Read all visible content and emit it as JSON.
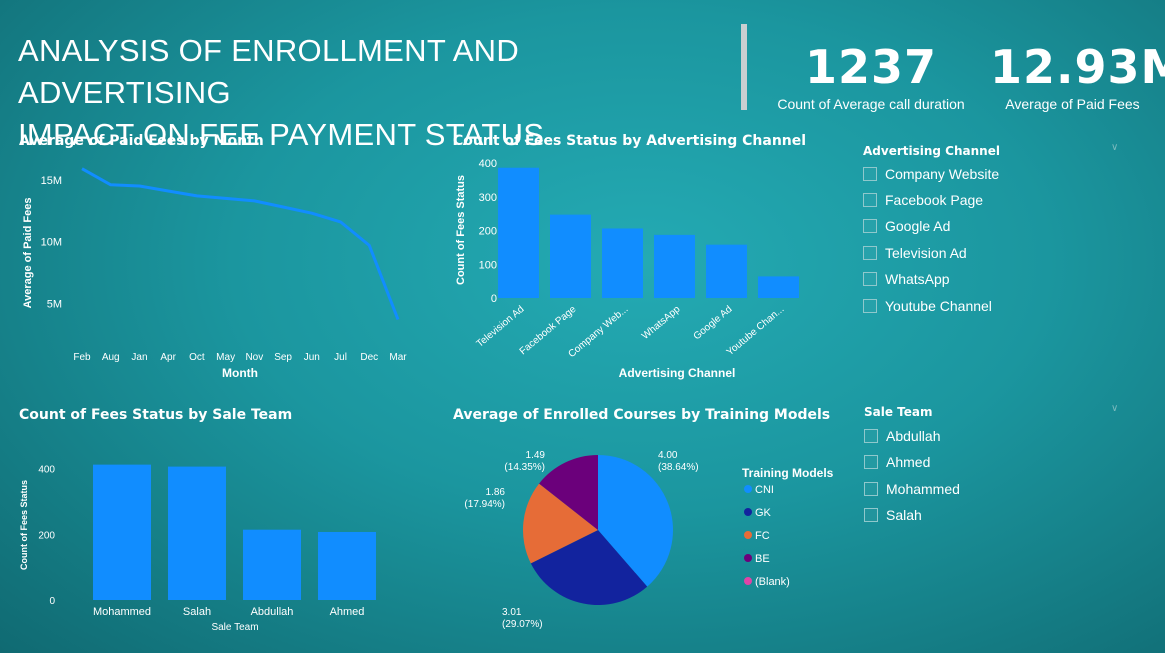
{
  "header": {
    "title_line1": "ANALYSIS OF ENROLLMENT AND ADVERTISING",
    "title_line2": "IMPACT ON FEE PAYMENT STATUS"
  },
  "kpis": [
    {
      "value": "1237",
      "label": "Count of Average call duration"
    },
    {
      "value": "12.93M",
      "label": "Average of Paid Fees"
    }
  ],
  "colors": {
    "bar": "#118dff",
    "pie": [
      "#118dff",
      "#12239e",
      "#e66c37",
      "#6b007b",
      "#e044a7"
    ]
  },
  "chart_data": [
    {
      "type": "line",
      "title": "Average of Paid Fees by Month",
      "xlabel": "Month",
      "ylabel": "Average of Paid Fees",
      "categories": [
        "Feb",
        "Aug",
        "Jan",
        "Apr",
        "Oct",
        "May",
        "Nov",
        "Sep",
        "Jun",
        "Jul",
        "Dec",
        "Mar"
      ],
      "values": [
        15.9,
        14.6,
        14.5,
        14.1,
        13.7,
        13.5,
        13.3,
        12.8,
        12.3,
        11.6,
        9.7,
        3.7
      ],
      "yticks": [
        5,
        10,
        15
      ],
      "ytick_labels": [
        "5M",
        "10M",
        "15M"
      ],
      "ylim": [
        3.5,
        16.2
      ]
    },
    {
      "type": "bar",
      "title": "Count of Fees Status by Advertising Channel",
      "xlabel": "Advertising Channel",
      "ylabel": "Count of Fees Status",
      "categories": [
        "Television Ad",
        "Facebook Page",
        "Company Web...",
        "WhatsApp",
        "Google Ad",
        "Youtube Chan..."
      ],
      "values": [
        386,
        247,
        206,
        187,
        158,
        64
      ],
      "yticks": [
        0,
        100,
        200,
        300,
        400
      ],
      "ylim": [
        0,
        400
      ]
    },
    {
      "type": "bar",
      "title": "Count of Fees Status by Sale Team",
      "xlabel": "Sale Team",
      "ylabel": "Count of Fees Status",
      "categories": [
        "Mohammed",
        "Salah",
        "Abdullah",
        "Ahmed"
      ],
      "values": [
        412,
        406,
        214,
        207
      ],
      "yticks": [
        0,
        200,
        400
      ],
      "ylim": [
        0,
        420
      ]
    },
    {
      "type": "pie",
      "title": "Average of Enrolled Courses by Training Models",
      "legend_title": "Training Models",
      "categories": [
        "CNI",
        "GK",
        "FC",
        "BE",
        "(Blank)"
      ],
      "values": [
        4.0,
        3.01,
        1.86,
        1.49,
        0
      ],
      "data_labels": [
        "4.00 (38.64%)",
        "3.01 (29.07%)",
        "1.86 (17.94%)",
        "1.49 (14.35%)",
        ""
      ]
    }
  ],
  "slicers": {
    "advertising": {
      "title": "Advertising Channel",
      "items": [
        "Company Website",
        "Facebook Page",
        "Google Ad",
        "Television Ad",
        "WhatsApp",
        "Youtube Channel"
      ]
    },
    "sale_team": {
      "title": "Sale Team",
      "items": [
        "Abdullah",
        "Ahmed",
        "Mohammed",
        "Salah"
      ]
    }
  },
  "icons": {
    "slicer_expand": "chevron-down-icon"
  }
}
